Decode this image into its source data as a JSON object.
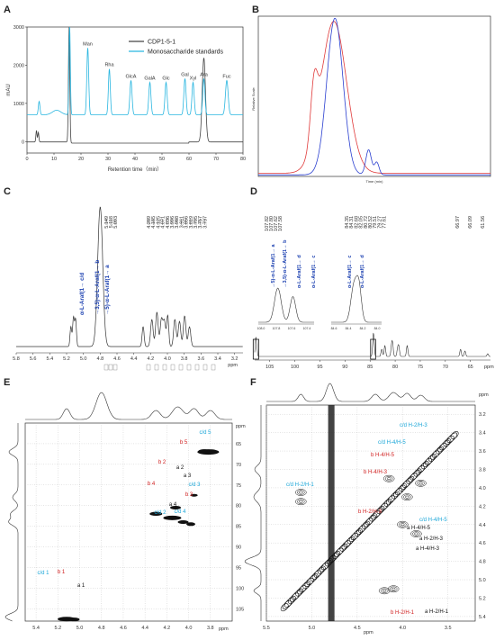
{
  "panels": {
    "A": {
      "letter": "A"
    },
    "B": {
      "letter": "B"
    },
    "C": {
      "letter": "C"
    },
    "D": {
      "letter": "D"
    },
    "E": {
      "letter": "E"
    },
    "F": {
      "letter": "F"
    }
  },
  "chart_data": [
    {
      "id": "A",
      "type": "line",
      "xlabel": "Retention time（min）",
      "ylabel": "mAU",
      "xlim": [
        0,
        80
      ],
      "ylim": [
        -300,
        3000
      ],
      "xticks": [
        0,
        10,
        20,
        30,
        40,
        50,
        60,
        70,
        80
      ],
      "yticks": [
        0,
        1000,
        2000,
        3000
      ],
      "series": [
        {
          "name": "CDP1-5-1",
          "color": "#444444"
        },
        {
          "name": "Monosaccharide standards",
          "color": "#29b6e0"
        }
      ],
      "peaks": [
        {
          "label": "Man",
          "x": 22.5
        },
        {
          "label": "Rha",
          "x": 30.5
        },
        {
          "label": "GlcA",
          "x": 38.5
        },
        {
          "label": "GalA",
          "x": 45.5
        },
        {
          "label": "Glc",
          "x": 51.5
        },
        {
          "label": "Gal",
          "x": 58.5
        },
        {
          "label": "Xyl",
          "x": 61.5
        },
        {
          "label": "Ara",
          "x": 65.5
        },
        {
          "label": "Fuc",
          "x": 74
        }
      ]
    },
    {
      "id": "B",
      "type": "line",
      "xlabel": "Time (min)",
      "ylabel": "Relative Scale",
      "series": [
        {
          "color": "#2a3fd0"
        },
        {
          "color": "#e03a3a"
        }
      ]
    },
    {
      "id": "C",
      "type": "line",
      "xlabel": "ppm",
      "xlim": [
        5.8,
        3.1
      ],
      "xticks": [
        5.8,
        5.6,
        5.4,
        5.2,
        5.0,
        4.8,
        4.6,
        4.4,
        4.2,
        4.0,
        3.8,
        3.6,
        3.4,
        3.2
      ],
      "peak_list_left": [
        "5.149",
        "5.118",
        "5.093"
      ],
      "peak_list_right": [
        "4.289",
        "4.185",
        "4.125",
        "4.071",
        "4.036",
        "3.996",
        "3.988",
        "3.911",
        "3.856",
        "3.819",
        "3.795",
        "3.757",
        "3.737"
      ],
      "annotations": [
        {
          "text": "α-L-Araf(1→ c/d",
          "color": "#1a3fb0"
        },
        {
          "text": "→3,5)-α-L-Araf(1→ b",
          "color": "#1a3fb0"
        },
        {
          "text": "→5)-α-L-Araf(1→ a",
          "color": "#1a3fb0"
        }
      ]
    },
    {
      "id": "D",
      "type": "line",
      "xlabel": "ppm",
      "xticks": [
        105,
        100,
        95,
        90,
        85,
        80,
        75,
        70,
        65
      ],
      "peak_list_left": [
        "107.82",
        "107.80",
        "107.62",
        "107.58"
      ],
      "peak_list_mid": [
        "84.35",
        "84.31",
        "82.68",
        "82.05",
        "80.72",
        "80.52",
        "79.51",
        "79.27",
        "77.61"
      ],
      "peak_list_right": [
        "66.97",
        "66.09",
        "61.56"
      ],
      "inset_ticks_left": [
        "108.0",
        "107.8",
        "107.6",
        "107.4"
      ],
      "inset_ticks_right": [
        "84.6",
        "84.4",
        "84.2",
        "84.0"
      ],
      "annotations": [
        {
          "text": "→5)-α-L-Araf(1→ a",
          "color": "#1a3fb0"
        },
        {
          "text": "→3,5)-α-L-Araf(1→ b",
          "color": "#1a3fb0"
        },
        {
          "text": "α-L-Araf(1→ d",
          "color": "#1a3fb0"
        },
        {
          "text": "α-L-Araf(1→ c",
          "color": "#1a3fb0"
        },
        {
          "text": "α-L-Araf(1→ c",
          "color": "#1a3fb0"
        },
        {
          "text": "α-L-Araf(1→ d",
          "color": "#1a3fb0"
        }
      ]
    },
    {
      "id": "E",
      "type": "heatmap",
      "xlabel": "ppm",
      "ylabel": "ppm",
      "xlim": [
        5.5,
        3.6
      ],
      "ylim": [
        60,
        108
      ],
      "xticks": [
        5.4,
        5.2,
        5.0,
        4.8,
        4.6,
        4.4,
        4.2,
        4.0,
        3.8
      ],
      "yticks": [
        65,
        70,
        75,
        80,
        85,
        90,
        95,
        100,
        105
      ],
      "labels": [
        {
          "text": "c/d 5",
          "color": "#1aa6d8"
        },
        {
          "text": "b 5",
          "color": "#d02020"
        },
        {
          "text": "a 5",
          "color": "#111111"
        },
        {
          "text": "b 2",
          "color": "#d02020"
        },
        {
          "text": "a 2",
          "color": "#111111"
        },
        {
          "text": "a 3",
          "color": "#111111"
        },
        {
          "text": "c/d 3",
          "color": "#1aa6d8"
        },
        {
          "text": "b 4",
          "color": "#d02020"
        },
        {
          "text": "b 3",
          "color": "#d02020"
        },
        {
          "text": "a 4",
          "color": "#111111"
        },
        {
          "text": "c/d 2",
          "color": "#1aa6d8"
        },
        {
          "text": "c/d 4",
          "color": "#1aa6d8"
        },
        {
          "text": "c/d 1",
          "color": "#1aa6d8"
        },
        {
          "text": "b 1",
          "color": "#d02020"
        },
        {
          "text": "a 1",
          "color": "#111111"
        }
      ]
    },
    {
      "id": "F",
      "type": "heatmap",
      "xlabel": "ppm",
      "ylabel": "ppm",
      "xlim": [
        5.5,
        3.2
      ],
      "ylim": [
        3.1,
        5.45
      ],
      "xticks": [
        5.5,
        5.0,
        4.5,
        4.0,
        3.5
      ],
      "yticks": [
        3.2,
        3.4,
        3.6,
        3.8,
        4.0,
        4.2,
        4.4,
        4.6,
        4.8,
        5.0,
        5.2,
        5.4
      ],
      "labels": [
        {
          "text": "c/d H-2/H-3",
          "color": "#1aa6d8"
        },
        {
          "text": "c/d H-4/H-5",
          "color": "#1aa6d8"
        },
        {
          "text": "b H-4/H-5",
          "color": "#d02020"
        },
        {
          "text": "b H-4/H-3",
          "color": "#d02020"
        },
        {
          "text": "c/d H-2/H-1",
          "color": "#1aa6d8"
        },
        {
          "text": "b H-2/H-3",
          "color": "#d02020"
        },
        {
          "text": "c/d H-4/H-5",
          "color": "#1aa6d8"
        },
        {
          "text": "a H-4/H-5",
          "color": "#111111"
        },
        {
          "text": "a H-2/H-3",
          "color": "#111111"
        },
        {
          "text": "a H-4/H-3",
          "color": "#111111"
        },
        {
          "text": "b H-2/H-1",
          "color": "#d02020"
        },
        {
          "text": "a H-2/H-1",
          "color": "#111111"
        }
      ]
    }
  ]
}
